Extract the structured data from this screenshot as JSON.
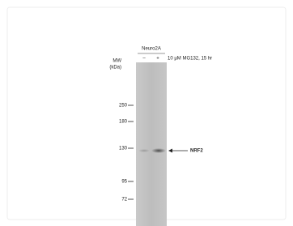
{
  "header": {
    "cell_line": "Neuro2A",
    "lanes": [
      "–",
      "+"
    ],
    "treatment": "10 μM MG132, 15 hr"
  },
  "axis": {
    "label_line1": "MW",
    "label_line2": "(kDa)",
    "markers": [
      "250",
      "180",
      "130",
      "95",
      "72"
    ]
  },
  "band": {
    "label": "NRF2"
  }
}
